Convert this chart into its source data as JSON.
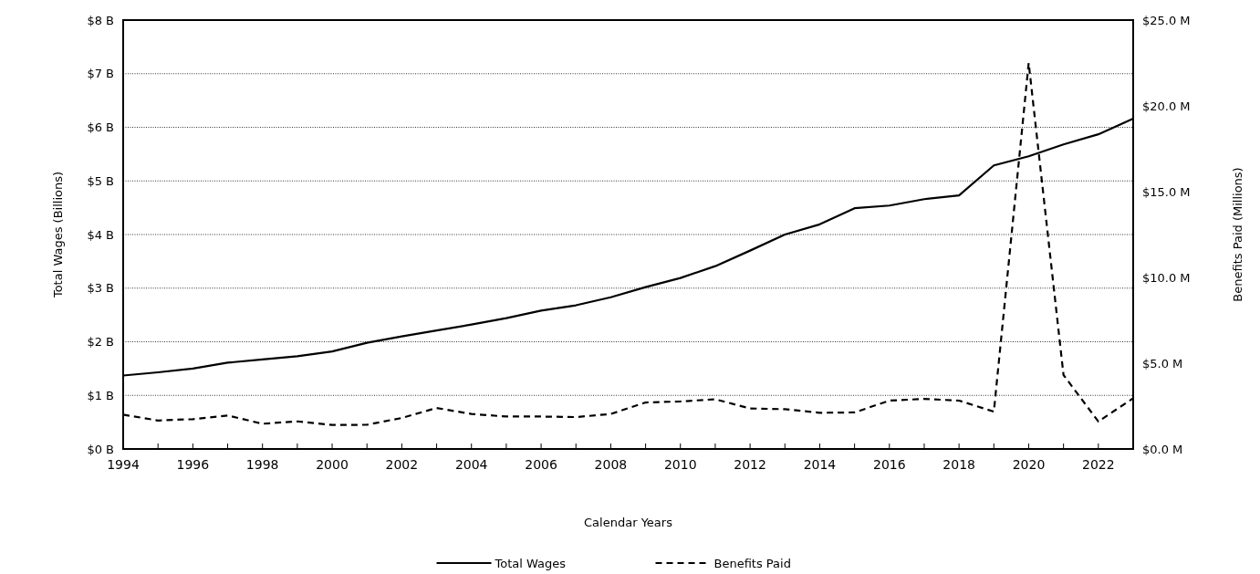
{
  "chart_data": {
    "type": "line",
    "xlabel": "Calendar Years",
    "ylabel": "Total Wages (Billions)",
    "y2label": "Benefits Paid (Millions)",
    "x": [
      1994,
      1995,
      1996,
      1997,
      1998,
      1999,
      2000,
      2001,
      2002,
      2003,
      2004,
      2005,
      2006,
      2007,
      2008,
      2009,
      2010,
      2011,
      2012,
      2013,
      2014,
      2015,
      2016,
      2017,
      2018,
      2019,
      2020,
      2021,
      2022,
      2023
    ],
    "series": [
      {
        "name": "Total Wages",
        "color": "#000000",
        "line_style": "solid",
        "values": [
          1.37,
          1.43,
          1.5,
          1.61,
          1.67,
          1.73,
          1.82,
          1.98,
          2.1,
          2.21,
          2.32,
          2.44,
          2.58,
          2.68,
          2.83,
          3.02,
          3.19,
          3.41,
          3.7,
          4.0,
          4.19,
          4.49,
          4.54,
          4.66,
          4.73,
          5.29,
          5.46,
          5.68,
          5.87,
          6.16
        ]
      },
      {
        "name": "Benefits Paid",
        "color": "#000000",
        "line_style": "dashed",
        "axis": "y2",
        "values": [
          2.0,
          1.66,
          1.74,
          1.95,
          1.47,
          1.61,
          1.4,
          1.41,
          1.81,
          2.39,
          2.04,
          1.89,
          1.89,
          1.86,
          2.04,
          2.71,
          2.77,
          2.9,
          2.36,
          2.32,
          2.11,
          2.13,
          2.82,
          2.92,
          2.82,
          2.18,
          22.5,
          4.31,
          1.6,
          2.96
        ]
      }
    ],
    "xlim": [
      1994,
      2023
    ],
    "xticks": [
      1994,
      {
        "value": 1995,
        "label": null
      },
      1996,
      {
        "value": 1997,
        "label": null
      },
      1998,
      {
        "value": 1999,
        "label": null
      },
      2000,
      {
        "value": 2001,
        "label": null
      },
      2002,
      {
        "value": 2003,
        "label": null
      },
      2004,
      {
        "value": 2005,
        "label": null
      },
      2006,
      {
        "value": 2007,
        "label": null
      },
      2008,
      {
        "value": 2009,
        "label": null
      },
      2010,
      {
        "value": 2011,
        "label": null
      },
      2012,
      {
        "value": 2013,
        "label": null
      },
      2014,
      {
        "value": 2015,
        "label": null
      },
      2016,
      {
        "value": 2017,
        "label": null
      },
      2018,
      {
        "value": 2019,
        "label": null
      },
      2020,
      {
        "value": 2021,
        "label": null
      },
      2022,
      {
        "value": 2023,
        "label": null
      }
    ],
    "ylim": [
      0,
      8
    ],
    "yticks": [
      {
        "value": 0,
        "label": "$0 B"
      },
      {
        "value": 1,
        "label": "$1 B"
      },
      {
        "value": 2,
        "label": "$2 B"
      },
      {
        "value": 3,
        "label": "$3 B"
      },
      {
        "value": 4,
        "label": "$4 B"
      },
      {
        "value": 5,
        "label": "$5 B"
      },
      {
        "value": 6,
        "label": "$6 B"
      },
      {
        "value": 7,
        "label": "$7 B"
      },
      {
        "value": 8,
        "label": "$8 B"
      }
    ],
    "y2lim": [
      0,
      25
    ],
    "y2ticks": [
      {
        "value": 0,
        "label": "$0.0 M"
      },
      {
        "value": 5,
        "label": "$5.0 M"
      },
      {
        "value": 10,
        "label": "$10.0 M"
      },
      {
        "value": 15,
        "label": "$15.0 M"
      },
      {
        "value": 20,
        "label": "$20.0 M"
      },
      {
        "value": 25,
        "label": "$25.0 M"
      }
    ],
    "grid": "y",
    "legend": "bottom"
  }
}
